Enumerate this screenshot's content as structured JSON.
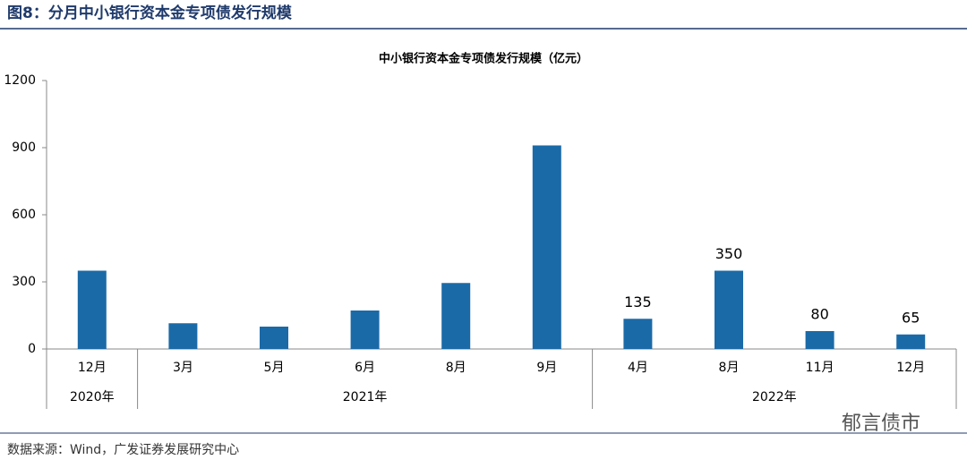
{
  "header": "图8：分月中小银行资本金专项债发行规模",
  "source": "数据来源：Wind，广发证券发展研究中心",
  "watermark": "郁言债市",
  "chart_data": {
    "type": "bar",
    "title": "中小银行资本金专项债发行规模（亿元）",
    "categories": [
      "12月",
      "3月",
      "5月",
      "6月",
      "8月",
      "9月",
      "4月",
      "8月",
      "11月",
      "12月"
    ],
    "category_groups": [
      {
        "name": "2020年",
        "size": 1
      },
      {
        "name": "2021年",
        "size": 5
      },
      {
        "name": "2022年",
        "size": 4
      }
    ],
    "values": [
      350,
      115,
      100,
      172,
      295,
      910,
      135,
      350,
      80,
      65
    ],
    "value_labels": [
      null,
      null,
      null,
      null,
      null,
      null,
      "135",
      "350",
      "80",
      "65"
    ],
    "color": "#1b6aa8",
    "ylim": [
      0,
      1200
    ],
    "yticks": [
      0,
      300,
      600,
      900,
      1200
    ],
    "grid": false
  }
}
